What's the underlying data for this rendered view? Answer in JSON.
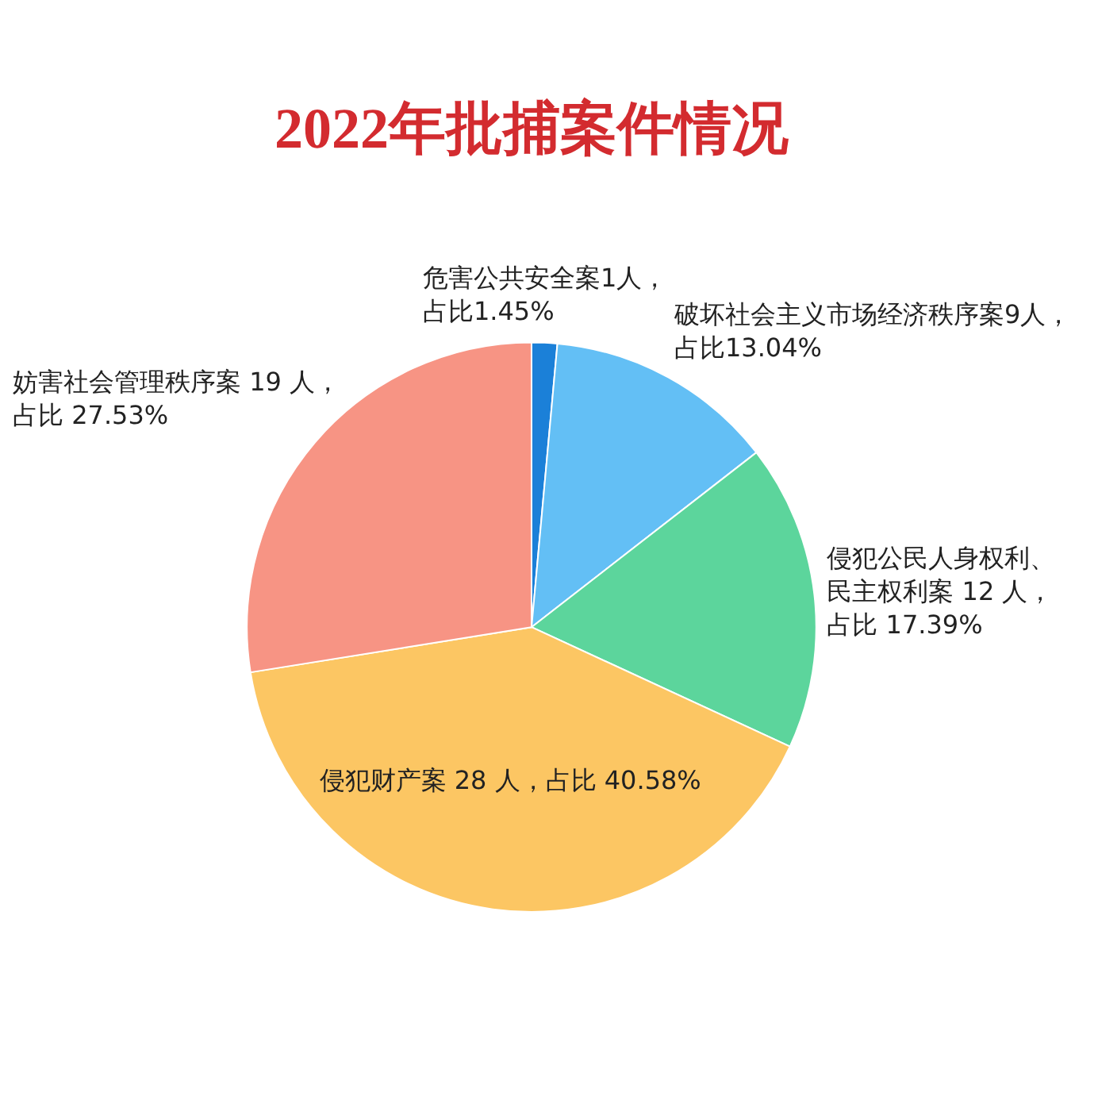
{
  "chart_data": {
    "type": "pie",
    "title": "2022年批捕案件情况",
    "categories": [
      "危害公共安全案",
      "破坏社会主义市场经济秩序案",
      "侵犯公民人身权利、民主权利案",
      "侵犯财产案",
      "妨害社会管理秩序案"
    ],
    "values": [
      1,
      9,
      12,
      28,
      19
    ],
    "colors": [
      "#1b80d8",
      "#63bff5",
      "#5cd59c",
      "#fcc663",
      "#f79484"
    ],
    "value_labels": [
      "1人，占比1.45%",
      "9人，占比13.04%",
      "12 人，占比 17.39%",
      "28 人，占比 40.58%",
      "19 人，占比 27.53%"
    ]
  }
}
